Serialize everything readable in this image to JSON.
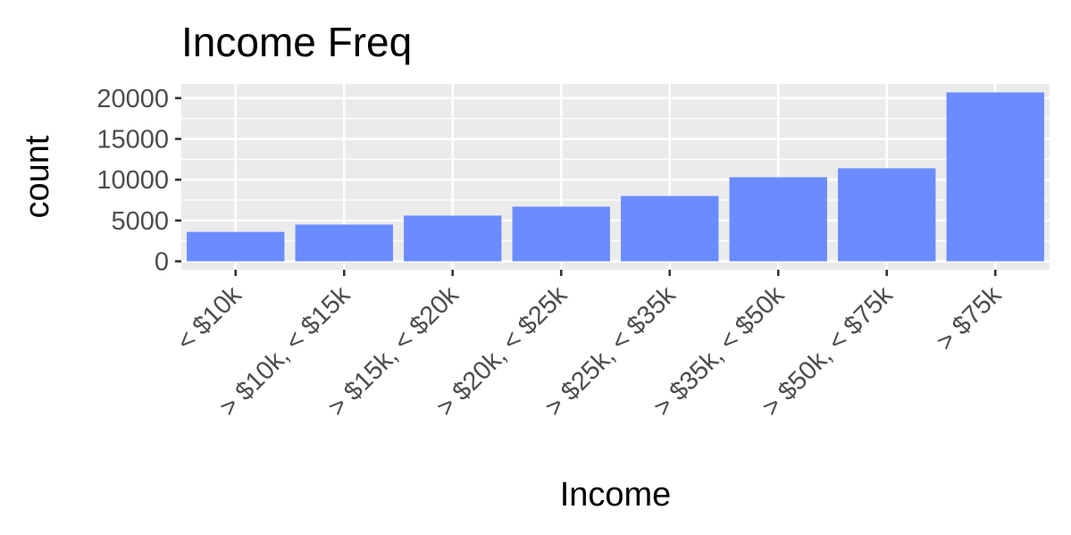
{
  "chart_data": {
    "type": "bar",
    "title": "Income Freq",
    "xlabel": "Income",
    "ylabel": "count",
    "categories": [
      "< $10k",
      "> $10k, < $15k",
      "> $15k, < $20k",
      "> $20k, < $25k",
      "> $25k, < $35k",
      "> $35k, < $50k",
      "> $50k, < $75k",
      "> $75k"
    ],
    "values": [
      3600,
      4500,
      5600,
      6700,
      8000,
      10300,
      11400,
      20700
    ],
    "ylim": [
      -1035,
      21735
    ],
    "yticks": [
      0,
      5000,
      10000,
      15000,
      20000
    ],
    "ytick_labels": [
      "0",
      "5000",
      "10000",
      "15000",
      "20000"
    ],
    "grid": true,
    "bar_color": "#6a8cff",
    "panel_color": "#ebebeb"
  }
}
